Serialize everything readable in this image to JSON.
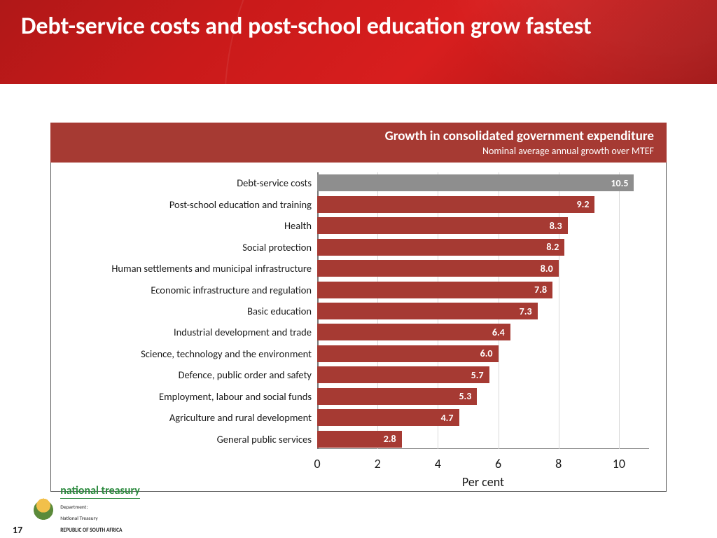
{
  "slide": {
    "title": "Debt-service costs and post-school education grow fastest",
    "page_number": "17"
  },
  "header_colors": {
    "gradient_from": "#b01818",
    "gradient_to": "#a01414",
    "title_color": "#ffffff"
  },
  "chart": {
    "type": "horizontal-bar",
    "title": "Growth in consolidated government expenditure",
    "subtitle": "Nominal average annual growth over MTEF",
    "header_bg": "#a63a33",
    "header_text_color": "#ffffff",
    "plot_border_color": "#5b5b5b",
    "grid_color": "#d9d9d9",
    "bar_default_color": "#a63a33",
    "bar_highlight_color": "#8e8e8e",
    "value_text_color": "#ffffff",
    "value_fontsize": 14,
    "category_fontsize": 14.5,
    "x_axis": {
      "label": "Per cent",
      "min": 0,
      "max": 11,
      "tick_step": 2,
      "ticks": [
        0,
        2,
        4,
        6,
        8,
        10
      ],
      "tick_fontsize": 18,
      "label_fontsize": 18
    },
    "categories": [
      {
        "label": "Debt-service costs",
        "value": 10.5,
        "highlight": true
      },
      {
        "label": "Post-school education and training",
        "value": 9.2,
        "highlight": false
      },
      {
        "label": "Health",
        "value": 8.3,
        "highlight": false
      },
      {
        "label": "Social protection",
        "value": 8.2,
        "highlight": false
      },
      {
        "label": "Human settlements and municipal infrastructure",
        "value": 8.0,
        "highlight": false
      },
      {
        "label": "Economic infrastructure and regulation",
        "value": 7.8,
        "highlight": false
      },
      {
        "label": "Basic education",
        "value": 7.3,
        "highlight": false
      },
      {
        "label": "Industrial development and trade",
        "value": 6.4,
        "highlight": false
      },
      {
        "label": "Science, technology and the environment",
        "value": 6.0,
        "highlight": false
      },
      {
        "label": "Defence, public order and safety",
        "value": 5.7,
        "highlight": false
      },
      {
        "label": "Employment, labour and social funds",
        "value": 5.3,
        "highlight": false
      },
      {
        "label": "Agriculture and rural development",
        "value": 4.7,
        "highlight": false
      },
      {
        "label": "General public services",
        "value": 2.8,
        "highlight": false
      }
    ]
  },
  "footer": {
    "dept_name": "national treasury",
    "line1": "Department:",
    "line2": "National Treasury",
    "line3": "REPUBLIC OF SOUTH AFRICA",
    "name_color": "#2b8a3e"
  }
}
